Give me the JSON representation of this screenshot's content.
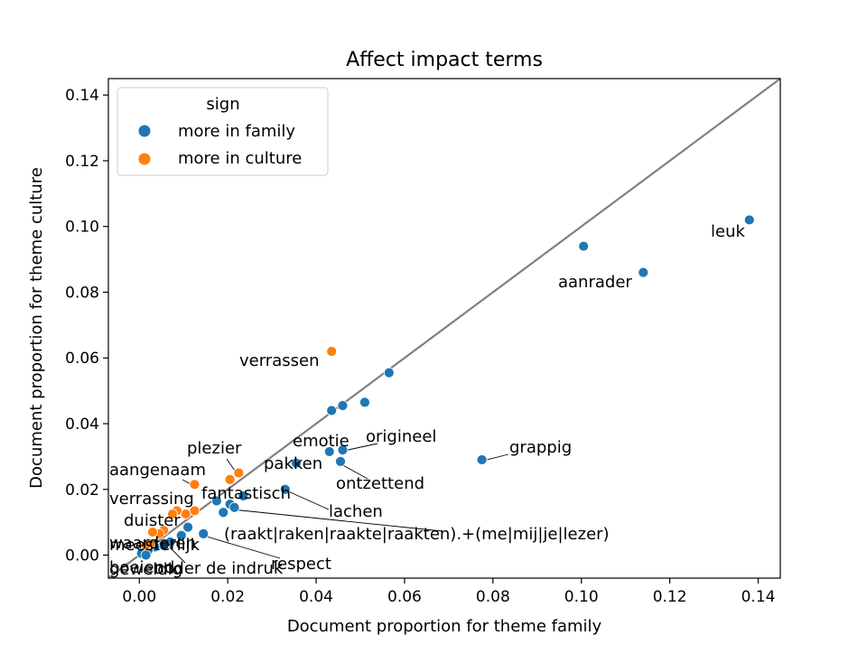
{
  "chart_data": {
    "type": "scatter",
    "title": "Affect impact terms",
    "xlabel": "Document proportion for theme family",
    "ylabel": "Document proportion for theme culture",
    "xlim": [
      -0.007,
      0.145
    ],
    "ylim": [
      -0.007,
      0.145
    ],
    "xticks": [
      0.0,
      0.02,
      0.04,
      0.06,
      0.08,
      0.1,
      0.12,
      0.14
    ],
    "yticks": [
      0.0,
      0.02,
      0.04,
      0.06,
      0.08,
      0.1,
      0.12,
      0.14
    ],
    "xtick_labels": [
      "0.00",
      "0.02",
      "0.04",
      "0.06",
      "0.08",
      "0.10",
      "0.12",
      "0.14"
    ],
    "ytick_labels": [
      "0.00",
      "0.02",
      "0.04",
      "0.06",
      "0.08",
      "0.10",
      "0.12",
      "0.14"
    ],
    "grid": false,
    "diagonal_line": true,
    "legend": {
      "title": "sign",
      "placement": "top-left",
      "entries": [
        {
          "label": "more in family",
          "color": "#1f77b4"
        },
        {
          "label": "more in culture",
          "color": "#ff7f0e"
        }
      ]
    },
    "series": [
      {
        "name": "more in family",
        "color": "#1f77b4",
        "points": [
          {
            "x": 0.138,
            "y": 0.102
          },
          {
            "x": 0.1005,
            "y": 0.094
          },
          {
            "x": 0.114,
            "y": 0.086
          },
          {
            "x": 0.0775,
            "y": 0.029
          },
          {
            "x": 0.0565,
            "y": 0.0555
          },
          {
            "x": 0.051,
            "y": 0.0465
          },
          {
            "x": 0.046,
            "y": 0.0455
          },
          {
            "x": 0.0435,
            "y": 0.044
          },
          {
            "x": 0.046,
            "y": 0.032
          },
          {
            "x": 0.043,
            "y": 0.0315
          },
          {
            "x": 0.0455,
            "y": 0.0285
          },
          {
            "x": 0.0355,
            "y": 0.028
          },
          {
            "x": 0.033,
            "y": 0.02
          },
          {
            "x": 0.0235,
            "y": 0.018
          },
          {
            "x": 0.0175,
            "y": 0.0165
          },
          {
            "x": 0.0205,
            "y": 0.0155
          },
          {
            "x": 0.0215,
            "y": 0.0145
          },
          {
            "x": 0.019,
            "y": 0.013
          },
          {
            "x": 0.011,
            "y": 0.0085
          },
          {
            "x": 0.0145,
            "y": 0.0065
          },
          {
            "x": 0.0095,
            "y": 0.006
          },
          {
            "x": 0.007,
            "y": 0.004
          },
          {
            "x": 0.0055,
            "y": 0.003
          },
          {
            "x": 0.0035,
            "y": 0.0025
          },
          {
            "x": 0.002,
            "y": 0.0015
          },
          {
            "x": 0.001,
            "y": 0.0008
          },
          {
            "x": 0.0005,
            "y": 0.0005
          },
          {
            "x": 0.0015,
            "y": 0.0
          }
        ]
      },
      {
        "name": "more in culture",
        "color": "#ff7f0e",
        "points": [
          {
            "x": 0.0435,
            "y": 0.062
          },
          {
            "x": 0.0225,
            "y": 0.025
          },
          {
            "x": 0.0205,
            "y": 0.023
          },
          {
            "x": 0.0125,
            "y": 0.0215
          },
          {
            "x": 0.0125,
            "y": 0.0135
          },
          {
            "x": 0.0105,
            "y": 0.0125
          },
          {
            "x": 0.0085,
            "y": 0.0135
          },
          {
            "x": 0.0075,
            "y": 0.0125
          },
          {
            "x": 0.0055,
            "y": 0.0075
          },
          {
            "x": 0.0045,
            "y": 0.0065
          },
          {
            "x": 0.003,
            "y": 0.007
          },
          {
            "x": 0.0025,
            "y": 0.0035
          },
          {
            "x": 0.0015,
            "y": 0.003
          }
        ]
      }
    ],
    "annotations": [
      {
        "text": "leuk"
      },
      {
        "text": "aanrader"
      },
      {
        "text": "grappig"
      },
      {
        "text": "verrassen"
      },
      {
        "text": "origineel"
      },
      {
        "text": "emotie"
      },
      {
        "text": "pakken"
      },
      {
        "text": "ontzettend"
      },
      {
        "text": "plezier"
      },
      {
        "text": "aangenaam"
      },
      {
        "text": "fantastisch"
      },
      {
        "text": "lachen"
      },
      {
        "text": "verrassing"
      },
      {
        "text": "(raakt|raken|raakte|raakten).+(me|mij|je|lezer)"
      },
      {
        "text": "duister"
      },
      {
        "text": "respect"
      },
      {
        "text": "waarderen"
      },
      {
        "text": "meesterlijk"
      },
      {
        "text": "onder de indruk"
      },
      {
        "text": "boeiend"
      },
      {
        "text": "geweldig"
      }
    ]
  }
}
